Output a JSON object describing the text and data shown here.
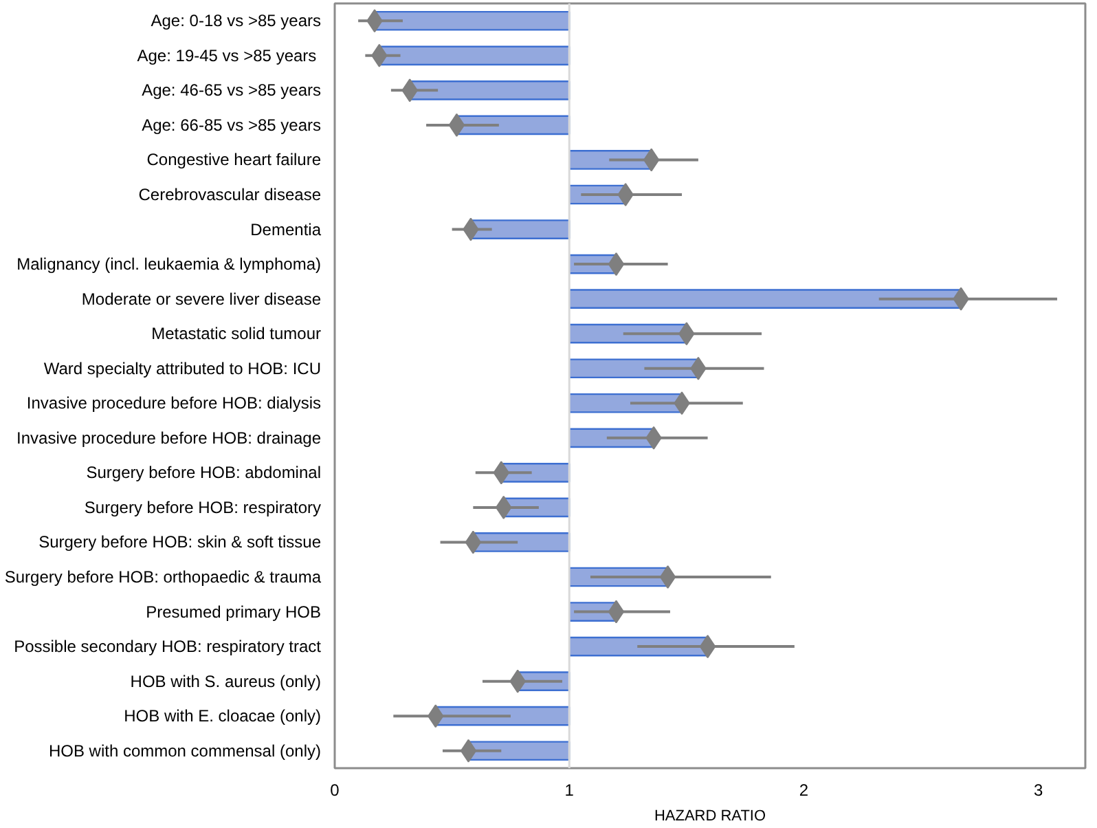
{
  "chart_data": {
    "type": "bar",
    "orientation": "horizontal",
    "xlabel": "HAZARD RATIO",
    "categories": [
      "Age: 0-18 vs >85 years",
      "Age: 19-45  vs >85 years",
      "Age: 46-65 vs >85 years",
      "Age: 66-85 vs >85 years",
      "Congestive heart failure",
      "Cerebrovascular disease",
      "Dementia",
      "Malignancy (incl. leukaemia & lymphoma)",
      "Moderate or severe liver disease",
      "Metastatic solid tumour",
      "Ward specialty attributed to HOB: ICU",
      "Invasive procedure before HOB: dialysis",
      "Invasive procedure before HOB: drainage",
      "Surgery before HOB: abdominal",
      "Surgery before HOB: respiratory",
      "Surgery before HOB: skin & soft tissue",
      "Surgery before HOB: orthopaedic & trauma",
      "Presumed primary HOB",
      "Possible secondary HOB: respiratory tract",
      "HOB with S. aureus (only)",
      "HOB with E. cloacae (only)",
      "HOB with common commensal (only)"
    ],
    "series": [
      {
        "color": "#93a8de",
        "base": [
          1,
          1,
          1,
          1,
          1,
          1,
          1,
          1,
          1,
          1,
          1,
          1,
          1,
          1,
          1,
          1,
          1,
          1,
          1,
          1,
          1,
          1
        ],
        "values": [
          -0.83,
          -0.81,
          -0.68,
          -0.48,
          0.35,
          0.24,
          -0.42,
          0.2,
          1.67,
          0.5,
          0.55,
          0.48,
          0.36,
          -0.29,
          -0.28,
          -0.41,
          0.42,
          0.2,
          0.59,
          -0.22,
          -0.57,
          -0.43
        ]
      },
      {
        "type": "scatter",
        "color": "#7f7f7f",
        "marker": "diamond",
        "values": [
          0.17,
          0.19,
          0.32,
          0.52,
          1.35,
          1.24,
          0.58,
          1.2,
          2.67,
          1.5,
          1.55,
          1.48,
          1.36,
          0.71,
          0.72,
          0.59,
          1.42,
          1.2,
          1.59,
          0.78,
          0.43,
          0.57
        ],
        "errors": [
          [
            0.1,
            0.29
          ],
          [
            0.13,
            0.28
          ],
          [
            0.24,
            0.44
          ],
          [
            0.39,
            0.7
          ],
          [
            1.17,
            1.55
          ],
          [
            1.05,
            1.48
          ],
          [
            0.5,
            0.67
          ],
          [
            1.02,
            1.42
          ],
          [
            2.32,
            3.08
          ],
          [
            1.23,
            1.82
          ],
          [
            1.32,
            1.83
          ],
          [
            1.26,
            1.74
          ],
          [
            1.16,
            1.59
          ],
          [
            0.6,
            0.84
          ],
          [
            0.59,
            0.87
          ],
          [
            0.45,
            0.78
          ],
          [
            1.09,
            1.86
          ],
          [
            1.02,
            1.43
          ],
          [
            1.29,
            1.96
          ],
          [
            0.63,
            0.97
          ],
          [
            0.25,
            0.75
          ],
          [
            0.46,
            0.71
          ]
        ]
      }
    ],
    "ref_lines": [
      {
        "axis": "x",
        "value": 1,
        "color": "#d9d9d9"
      }
    ],
    "xlim": [
      0,
      3.2
    ],
    "xticks": [
      0,
      1,
      2,
      3
    ],
    "grid": false
  }
}
